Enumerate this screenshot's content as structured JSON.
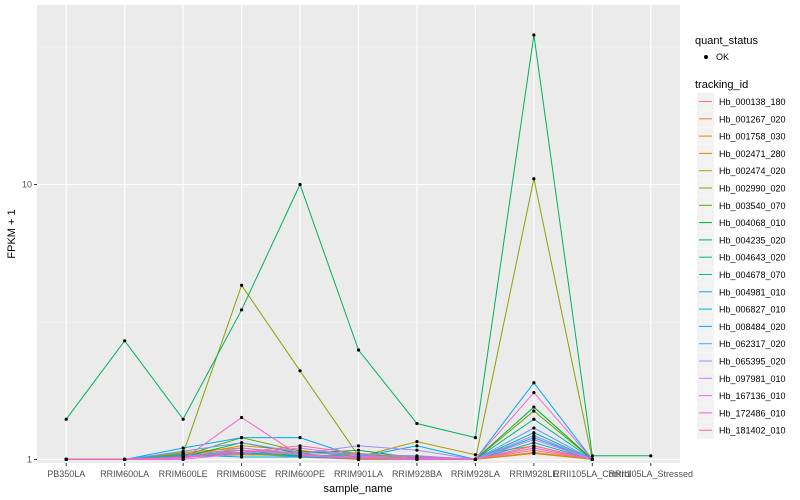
{
  "chart_data": {
    "type": "line",
    "title": "",
    "xlabel": "sample_name",
    "ylabel": "FPKM + 1",
    "y_scale": "log10",
    "ylim": [
      0.97,
      45
    ],
    "y_ticks": [
      1,
      10
    ],
    "y_tick_labels": [
      "1",
      "10"
    ],
    "categories": [
      "PB350LA",
      "RRIM600LA",
      "RRIM600LE",
      "RRIM600SE",
      "RRIM600PE",
      "RRIM901LA",
      "RRIM928BA",
      "RRIM928LA",
      "RRIM928LE",
      "RRII105LA_Control",
      "RRII105LA_Stressed"
    ],
    "legend_shape": {
      "title": "quant_status",
      "items": [
        "OK"
      ]
    },
    "legend_color_title": "tracking_id",
    "series": [
      {
        "name": "Hb_000138_180",
        "color": "#F8766D",
        "values": [
          1,
          1,
          1.02,
          1.05,
          1.02,
          1,
          1,
          1,
          1.08,
          1,
          null
        ]
      },
      {
        "name": "Hb_001267_020",
        "color": "#EE7F35",
        "values": [
          1,
          1,
          1.05,
          1.08,
          1.05,
          1.01,
          1,
          1,
          1.06,
          1,
          null
        ]
      },
      {
        "name": "Hb_001758_030",
        "color": "#DF8A00",
        "values": [
          1,
          1,
          1.03,
          1.12,
          1.08,
          1.02,
          1.01,
          1,
          1.1,
          1,
          null
        ]
      },
      {
        "name": "Hb_002471_280",
        "color": "#CA9500",
        "values": [
          1,
          1,
          1.06,
          1.1,
          1.04,
          1,
          1,
          1,
          1.05,
          1,
          null
        ]
      },
      {
        "name": "Hb_002474_020",
        "color": "#B09C00",
        "values": [
          1,
          1,
          1.02,
          1.04,
          1.03,
          1.02,
          1.16,
          1.04,
          1.12,
          1,
          null
        ]
      },
      {
        "name": "Hb_002990_020",
        "color": "#8CA200",
        "values": [
          1,
          1,
          1.05,
          4.3,
          2.1,
          1.03,
          1.01,
          1,
          10.5,
          1,
          null
        ]
      },
      {
        "name": "Hb_003540_070",
        "color": "#5BA800",
        "values": [
          1,
          1,
          1.03,
          1.2,
          1.07,
          1.05,
          1.02,
          1,
          1.5,
          1,
          null
        ]
      },
      {
        "name": "Hb_004068_010",
        "color": "#00AE32",
        "values": [
          1,
          1,
          1.02,
          1.15,
          1.05,
          1.08,
          1.01,
          1,
          1.55,
          1,
          null
        ]
      },
      {
        "name": "Hb_004235_020",
        "color": "#00B15F",
        "values": [
          1.4,
          2.7,
          1.4,
          3.5,
          10,
          2.5,
          1.35,
          1.2,
          35,
          1.03,
          1.03
        ]
      },
      {
        "name": "Hb_004643_020",
        "color": "#00B485",
        "values": [
          1,
          1,
          1.04,
          1.06,
          1.03,
          1.04,
          1.02,
          1,
          1.4,
          1,
          null
        ]
      },
      {
        "name": "Hb_004678_070",
        "color": "#00B6A4",
        "values": [
          1,
          1,
          1.02,
          1.08,
          1.02,
          1.01,
          1,
          1,
          1.25,
          1,
          null
        ]
      },
      {
        "name": "Hb_004981_010",
        "color": "#00B5C0",
        "values": [
          1,
          1,
          1.03,
          1.05,
          1.04,
          1.02,
          1.01,
          1,
          1.15,
          1,
          null
        ]
      },
      {
        "name": "Hb_006827_010",
        "color": "#00B1DB",
        "values": [
          1,
          1,
          1.04,
          1.02,
          1.02,
          1.01,
          1,
          1,
          1.2,
          1,
          null
        ]
      },
      {
        "name": "Hb_008484_020",
        "color": "#00A9F4",
        "values": [
          1,
          1,
          1.1,
          1.2,
          1.2,
          1.02,
          1.12,
          1,
          1.9,
          1,
          null
        ]
      },
      {
        "name": "Hb_062317_020",
        "color": "#619CFF",
        "values": [
          1,
          1,
          1.07,
          1.15,
          1.06,
          1.04,
          1.03,
          1,
          1.3,
          1,
          null
        ]
      },
      {
        "name": "Hb_065395_020",
        "color": "#A58AFF",
        "values": [
          1,
          1,
          1.02,
          1.1,
          1.05,
          1.12,
          1.08,
          1,
          1.22,
          1,
          null
        ]
      },
      {
        "name": "Hb_097981_010",
        "color": "#CF78FF",
        "values": [
          1,
          1,
          1,
          1.05,
          1.1,
          1.03,
          1,
          1,
          1.18,
          1,
          null
        ]
      },
      {
        "name": "Hb_167136_010",
        "color": "#EB6AEA",
        "values": [
          1,
          1,
          1.01,
          1.08,
          1.04,
          1.02,
          1.01,
          1,
          1.1,
          1,
          null
        ]
      },
      {
        "name": "Hb_172486_010",
        "color": "#FC61C7",
        "values": [
          1,
          1,
          1,
          1.42,
          1.03,
          1.01,
          1,
          1,
          1.75,
          1,
          null
        ]
      },
      {
        "name": "Hb_181402_010",
        "color": "#FF65A1",
        "values": [
          1,
          1,
          1.02,
          1.06,
          1.12,
          1.05,
          1.02,
          1,
          1.12,
          1,
          null
        ]
      }
    ]
  }
}
